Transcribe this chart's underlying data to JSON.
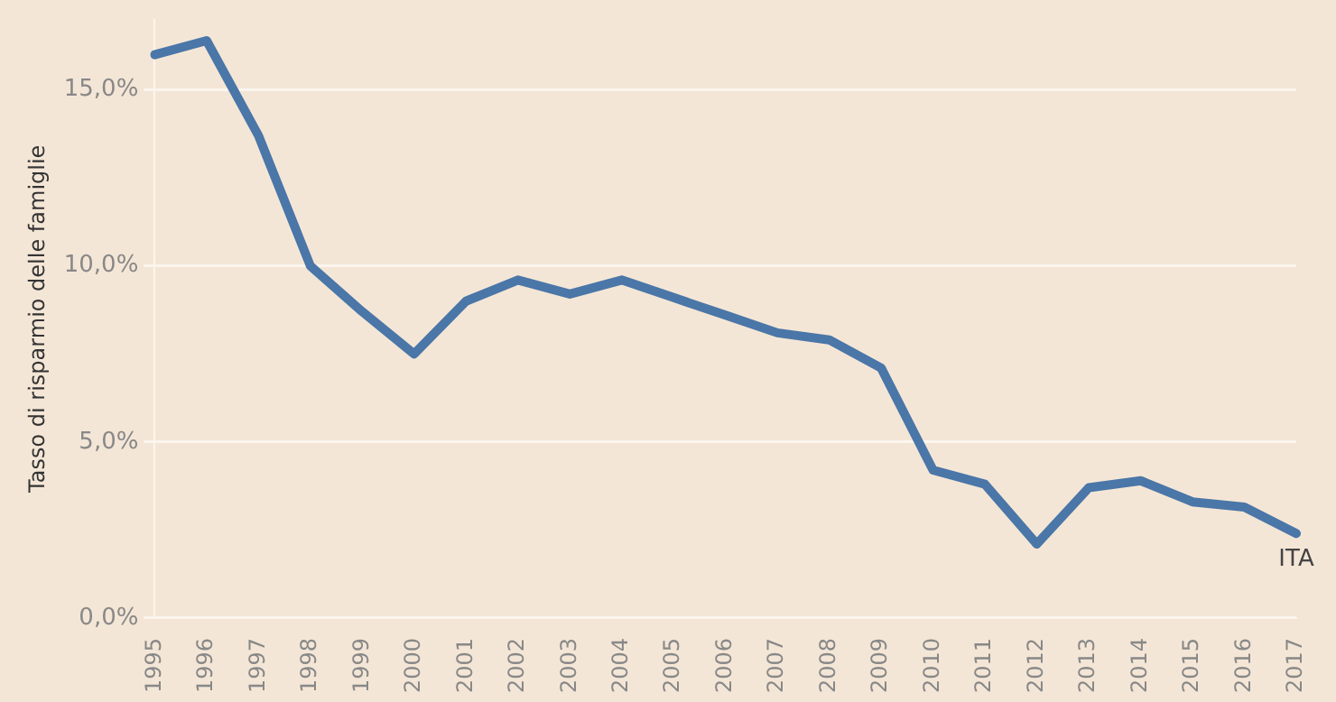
{
  "chart_data": {
    "type": "line",
    "ylabel": "Tasso di risparmio delle famiglie",
    "categories": [
      "1995",
      "1996",
      "1997",
      "1998",
      "1999",
      "2000",
      "2001",
      "2002",
      "2003",
      "2004",
      "2005",
      "2006",
      "2007",
      "2008",
      "2009",
      "2010",
      "2011",
      "2012",
      "2013",
      "2014",
      "2015",
      "2016",
      "2017"
    ],
    "series": [
      {
        "name": "ITA",
        "color": "#4a76a8",
        "values": [
          16.0,
          16.4,
          13.7,
          10.0,
          8.7,
          7.5,
          9.0,
          9.6,
          9.2,
          9.6,
          9.1,
          8.6,
          8.1,
          7.9,
          7.1,
          4.2,
          3.8,
          2.1,
          3.7,
          3.9,
          3.3,
          3.15,
          2.4
        ]
      }
    ],
    "ylim": [
      0,
      17
    ],
    "yticks": [
      {
        "value": 0,
        "label": "0,0%"
      },
      {
        "value": 5,
        "label": "5,0%"
      },
      {
        "value": 10,
        "label": "10,0%"
      },
      {
        "value": 15,
        "label": "15,0%"
      }
    ],
    "grid": "y",
    "legend": false,
    "marker": "none",
    "line_style": "solid"
  }
}
